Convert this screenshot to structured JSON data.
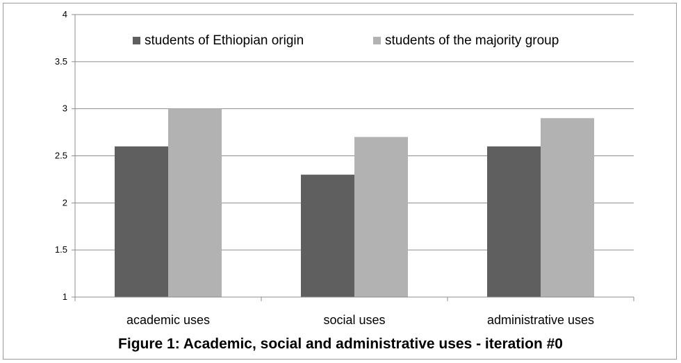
{
  "chart_data": {
    "type": "bar",
    "caption": "Figure 1: Academic, social and administrative uses - iteration #0",
    "categories": [
      "academic uses",
      "social uses",
      "administrative uses"
    ],
    "series": [
      {
        "name": "students of Ethiopian origin",
        "values": [
          2.6,
          2.3,
          2.6
        ],
        "color": "#5f5f5f"
      },
      {
        "name": "students of the majority group",
        "values": [
          3.0,
          2.7,
          2.9
        ],
        "color": "#b2b2b2"
      }
    ],
    "ylim": [
      1,
      4
    ],
    "yticks": [
      "1",
      "1.5",
      "2",
      "2.5",
      "3",
      "3.5",
      "4"
    ],
    "grid": true,
    "legend_position": "top"
  }
}
